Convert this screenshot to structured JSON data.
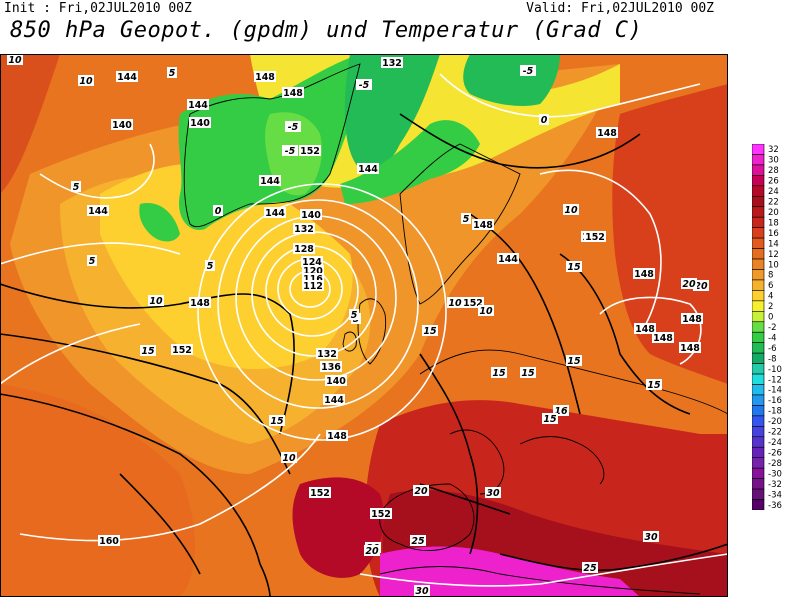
{
  "header": {
    "init": "Init : Fri,02JUL2010 00Z",
    "valid": "Valid: Fri,02JUL2010 00Z",
    "title": "850 hPa Geopot. (gpdm) und Temperatur (Grad C)"
  },
  "colors": {
    "geopotential_contours": "#ffffff",
    "temperature_contours": "#000000"
  },
  "map_labels": {
    "geopotential": [
      {
        "text": "144"
      },
      {
        "text": "148"
      },
      {
        "text": "132"
      },
      {
        "text": "140"
      },
      {
        "text": "144"
      },
      {
        "text": "148"
      },
      {
        "text": "144"
      },
      {
        "text": "140"
      },
      {
        "text": "152"
      },
      {
        "text": "144"
      },
      {
        "text": "144"
      },
      {
        "text": "144"
      },
      {
        "text": "140"
      },
      {
        "text": "132"
      },
      {
        "text": "128"
      },
      {
        "text": "124"
      },
      {
        "text": "120"
      },
      {
        "text": "116"
      },
      {
        "text": "112"
      },
      {
        "text": "148"
      },
      {
        "text": "152"
      },
      {
        "text": "152"
      },
      {
        "text": "132"
      },
      {
        "text": "136"
      },
      {
        "text": "140"
      },
      {
        "text": "144"
      },
      {
        "text": "148"
      },
      {
        "text": "152"
      },
      {
        "text": "148"
      },
      {
        "text": "144"
      },
      {
        "text": "148"
      },
      {
        "text": "152"
      },
      {
        "text": "148"
      },
      {
        "text": "148"
      },
      {
        "text": "148"
      },
      {
        "text": "148"
      },
      {
        "text": "148"
      },
      {
        "text": "152"
      },
      {
        "text": "160"
      },
      {
        "text": "152"
      }
    ],
    "temperature": [
      {
        "text": "10"
      },
      {
        "text": "5"
      },
      {
        "text": "-5"
      },
      {
        "text": "0"
      },
      {
        "text": "5"
      },
      {
        "text": "5"
      },
      {
        "text": "-5"
      },
      {
        "text": "-5"
      },
      {
        "text": "10"
      },
      {
        "text": "15"
      },
      {
        "text": "5"
      },
      {
        "text": "15"
      },
      {
        "text": "15"
      },
      {
        "text": "15"
      },
      {
        "text": "10"
      },
      {
        "text": "10"
      },
      {
        "text": "16"
      },
      {
        "text": "15"
      },
      {
        "text": "15"
      },
      {
        "text": "20"
      },
      {
        "text": "30"
      },
      {
        "text": "20"
      },
      {
        "text": "25"
      },
      {
        "text": "30"
      },
      {
        "text": "25"
      },
      {
        "text": "30"
      },
      {
        "text": "15"
      },
      {
        "text": "15"
      },
      {
        "text": "20"
      },
      {
        "text": "15"
      },
      {
        "text": "5"
      },
      {
        "text": "10"
      },
      {
        "text": "10"
      },
      {
        "text": "0"
      },
      {
        "text": "-5"
      },
      {
        "text": "5"
      },
      {
        "text": "5"
      },
      {
        "text": "20"
      },
      {
        "text": "20"
      },
      {
        "text": "10"
      }
    ]
  },
  "colorbar": {
    "values": [
      32,
      30,
      28,
      26,
      24,
      22,
      20,
      18,
      16,
      14,
      12,
      10,
      8,
      6,
      4,
      2,
      0,
      -2,
      -4,
      -6,
      -8,
      -10,
      -12,
      -14,
      -16,
      -18,
      -20,
      -22,
      -24,
      -26,
      -28,
      -30,
      -32,
      -34,
      -36
    ],
    "labels": [
      "32",
      "30",
      "28",
      "26",
      "24",
      "22",
      "20",
      "18",
      "16",
      "14",
      "12",
      "10",
      "8",
      "6",
      "4",
      "2",
      "0",
      "-2",
      "-4",
      "-6",
      "-8",
      "-10",
      "-12",
      "-14",
      "-16",
      "-18",
      "-20",
      "-22",
      "-24",
      "-26",
      "-28",
      "-30",
      "-32",
      "-34",
      "-36"
    ],
    "colors": [
      "#ff33ff",
      "#ee22cc",
      "#dd1199",
      "#c80055",
      "#b40a28",
      "#a5101c",
      "#b81a1c",
      "#c8251c",
      "#d8401c",
      "#e25a1e",
      "#e56d20",
      "#e88424",
      "#ef9a28",
      "#f6b12e",
      "#fdd030",
      "#f5f032",
      "#c8f03a",
      "#66dd44",
      "#33cc44",
      "#22bb55",
      "#11aa66",
      "#22ccaa",
      "#22dddd",
      "#22bbee",
      "#2299ee",
      "#2277ee",
      "#3355ee",
      "#4444dd",
      "#5533cc",
      "#6622bb",
      "#7722aa",
      "#881199",
      "#771188",
      "#661177",
      "#550066"
    ]
  }
}
